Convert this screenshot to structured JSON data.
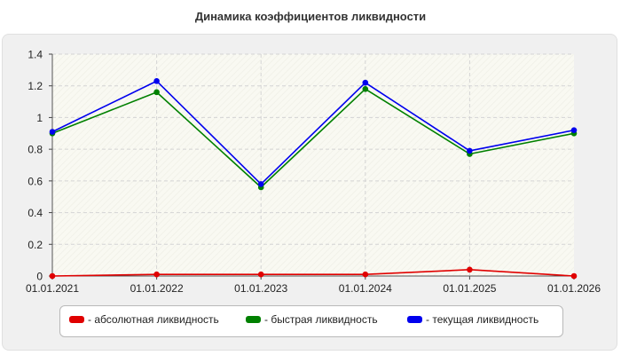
{
  "chart_data": {
    "type": "line",
    "title": "Динамика коэффициентов ликвидности",
    "categories": [
      "01.01.2021",
      "01.01.2022",
      "01.01.2023",
      "01.01.2024",
      "01.01.2025",
      "01.01.2026"
    ],
    "ylim": [
      0,
      1.4
    ],
    "yticks": [
      "0",
      "0.2",
      "0.4",
      "0.6",
      "0.8",
      "1",
      "1.2",
      "1.4"
    ],
    "grid": true,
    "legend_position": "bottom",
    "series": [
      {
        "name": "- абсолютная ликвидность",
        "color": "#e00000",
        "values": [
          0.0,
          0.01,
          0.01,
          0.01,
          0.04,
          0.0
        ]
      },
      {
        "name": "- быстрая ликвидность",
        "color": "#008000",
        "values": [
          0.9,
          1.16,
          0.56,
          1.18,
          0.77,
          0.9
        ]
      },
      {
        "name": "- текущая ликвидность",
        "color": "#0000ee",
        "values": [
          0.91,
          1.23,
          0.58,
          1.22,
          0.79,
          0.92
        ]
      }
    ]
  }
}
